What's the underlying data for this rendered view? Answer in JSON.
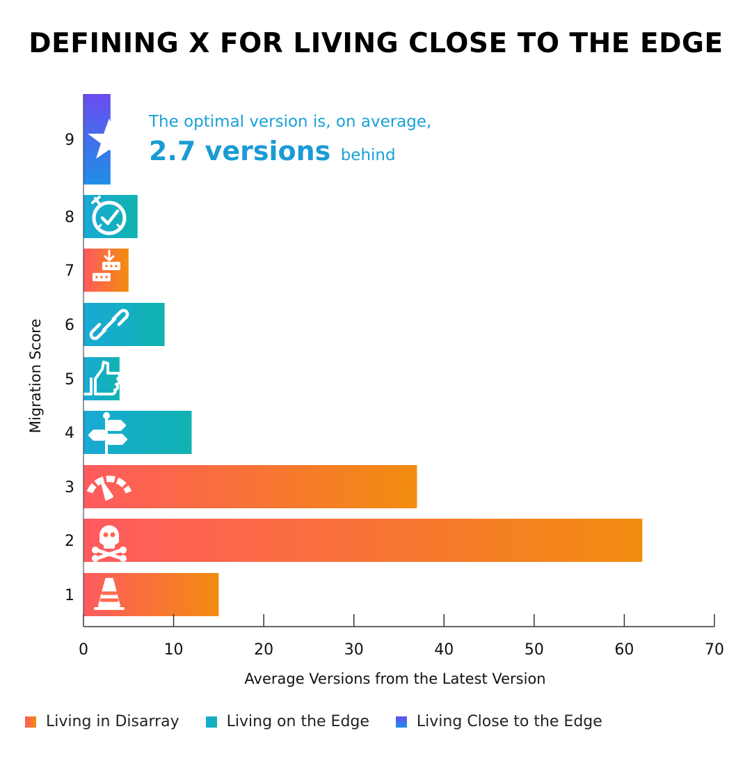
{
  "title": "DEFINING X FOR LIVING CLOSE TO THE EDGE",
  "annotation": {
    "line1": "The optimal version is, on average,",
    "value": "2.7 versions",
    "suffix": "behind"
  },
  "colors": {
    "disarray_start": "#ff5a5f",
    "disarray_end": "#f28c0f",
    "edge_start": "#1aa9d6",
    "edge_end": "#10b3b0",
    "close_start": "#6a4cf0",
    "close_end": "#1f8fe6"
  },
  "legend": [
    {
      "label": "Living in Disarray",
      "group": "disarray"
    },
    {
      "label": "Living on the Edge",
      "group": "edge"
    },
    {
      "label": "Living Close to the Edge",
      "group": "close"
    }
  ],
  "chart_data": {
    "type": "bar",
    "orientation": "horizontal",
    "title": "DEFINING X FOR LIVING CLOSE TO THE EDGE",
    "xlabel": "Average Versions from the Latest Version",
    "ylabel": "Migration Score",
    "xlim": [
      0,
      70
    ],
    "xticks": [
      0,
      10,
      20,
      30,
      40,
      50,
      60,
      70
    ],
    "grid": false,
    "legend_position": "bottom",
    "categories": [
      "1",
      "2",
      "3",
      "4",
      "5",
      "6",
      "7",
      "8",
      "9"
    ],
    "values": [
      15,
      62,
      37,
      12,
      4,
      9,
      5,
      6,
      3
    ],
    "groups": [
      "disarray",
      "disarray",
      "disarray",
      "edge",
      "edge",
      "edge",
      "disarray",
      "edge",
      "close"
    ],
    "icons": [
      "traffic-cone-icon",
      "skull-crossbones-icon",
      "speedometer-icon",
      "signpost-icon",
      "thumbs-up-icon",
      "chain-link-icon",
      "download-server-icon",
      "stopwatch-check-icon",
      "star-icon"
    ]
  }
}
